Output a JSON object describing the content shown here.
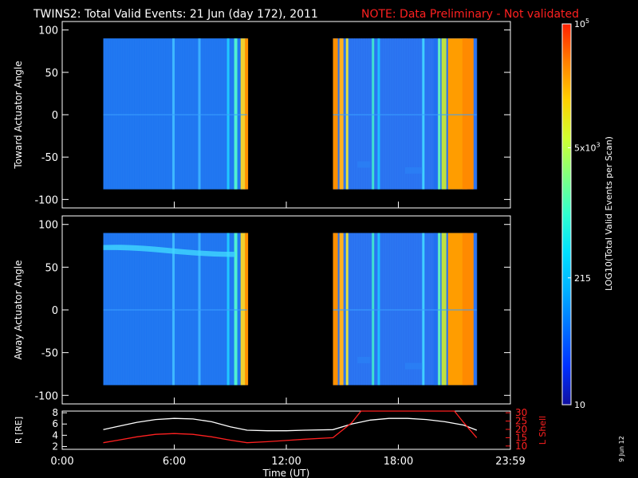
{
  "header": {
    "title": "TWINS2: Total Valid Events: 21 Jun (day 172), 2011",
    "note": "NOTE: Data Preliminary - Not validated"
  },
  "date_stamp": "9 Jun 12",
  "colorbar": {
    "label": "LOG10(Total Valid Events per Scan)",
    "ticks": [
      "10",
      "215",
      "5x10^3",
      "10^5"
    ],
    "tick_values": [
      10,
      215,
      5000,
      100000
    ],
    "colors": [
      "#1010a0",
      "#0030ff",
      "#0070ff",
      "#00b0ff",
      "#00e0ff",
      "#30ffd0",
      "#80ff80",
      "#d0ff30",
      "#ffd000",
      "#ff8000",
      "#ff2000"
    ]
  },
  "colors": {
    "title": "#ffffff",
    "note": "#ff2020",
    "r_line": "#ffffff",
    "lshell_line": "#ff2020"
  },
  "chart_data": [
    {
      "type": "heatmap",
      "ylabel": "Toward Actuator Angle",
      "xlim": [
        0,
        24
      ],
      "ylim": [
        -110,
        110
      ],
      "yticks": [
        100,
        50,
        0,
        -50,
        -100
      ],
      "tick_labels": [
        "100",
        "50",
        "0",
        "-50",
        "-100"
      ],
      "blocks": [
        {
          "start_hour": 2.2,
          "end_hour": 9.9
        },
        {
          "start_hour": 14.5,
          "end_hour": 22.2
        }
      ]
    },
    {
      "type": "heatmap",
      "ylabel": "Away Actuator Angle",
      "xlim": [
        0,
        24
      ],
      "ylim": [
        -110,
        110
      ],
      "yticks": [
        100,
        50,
        0,
        -50,
        -100
      ],
      "tick_labels": [
        "100",
        "50",
        "0",
        "-50",
        "-100"
      ],
      "blocks": [
        {
          "start_hour": 2.2,
          "end_hour": 9.9
        },
        {
          "start_hour": 14.5,
          "end_hour": 22.2
        }
      ]
    },
    {
      "type": "line",
      "xlabel": "Time (UT)",
      "xlim": [
        0,
        24
      ],
      "xticks": [
        0,
        6,
        12,
        18,
        24
      ],
      "xtick_labels": [
        "0:00",
        "6:00",
        "12:00",
        "18:00",
        "23:59"
      ],
      "y_left_label": "R [RE]",
      "y_left_ticks": [
        "8",
        "6",
        "4",
        "2"
      ],
      "y_left_lim": [
        1.5,
        8.3
      ],
      "y_right_label": "L Shell",
      "y_right_ticks": [
        "30",
        "25",
        "20",
        "15",
        "10"
      ],
      "y_right_lim": [
        8,
        31
      ],
      "series": [
        {
          "axis": "left",
          "x": [
            2.2,
            3,
            4,
            5,
            6,
            7,
            8,
            9,
            9.9,
            11,
            12,
            13,
            14.5,
            15.5,
            16.5,
            17.5,
            18.5,
            19.5,
            20.5,
            21.5,
            22.2
          ],
          "y": [
            5.0,
            5.6,
            6.3,
            6.8,
            7.0,
            6.9,
            6.4,
            5.5,
            4.9,
            4.8,
            4.8,
            4.9,
            5.0,
            6.0,
            6.7,
            7.0,
            7.0,
            6.8,
            6.4,
            5.8,
            4.9
          ]
        },
        {
          "axis": "right",
          "x": [
            2.2,
            3,
            4,
            5,
            6,
            7,
            8,
            9,
            9.9,
            11,
            12,
            13,
            14.5,
            15.5,
            16,
            21,
            21.5,
            22.2
          ],
          "y": [
            12,
            13.5,
            15.5,
            17,
            17.5,
            17,
            15.5,
            13.5,
            12,
            12.6,
            13.3,
            14.1,
            15,
            24,
            31,
            31,
            24,
            15
          ]
        }
      ]
    }
  ]
}
